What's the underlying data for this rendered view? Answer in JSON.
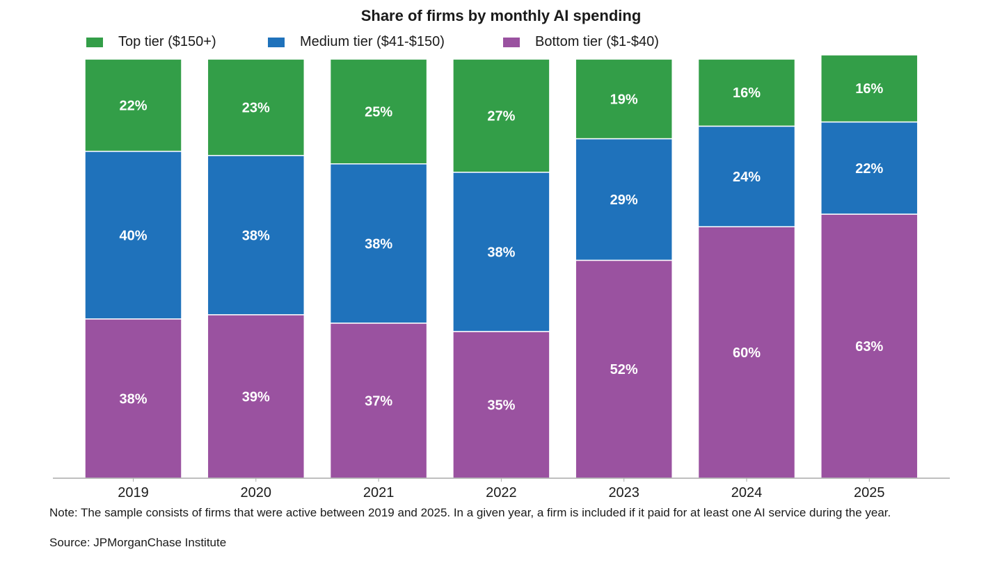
{
  "chart_data": {
    "type": "bar",
    "stacked": true,
    "title": "Share of firms by monthly AI spending",
    "xlabel": "",
    "ylabel": "",
    "ylim": [
      0,
      100
    ],
    "grid": false,
    "legend_position": "top-left",
    "categories": [
      "2019",
      "2020",
      "2021",
      "2022",
      "2023",
      "2024",
      "2025"
    ],
    "series": [
      {
        "name": "Bottom tier ($1-$40)",
        "color": "#9a52a0",
        "values": [
          38,
          39,
          37,
          35,
          52,
          60,
          63
        ]
      },
      {
        "name": "Medium tier ($41-$150)",
        "color": "#1f72bb",
        "values": [
          40,
          38,
          38,
          38,
          29,
          24,
          22
        ]
      },
      {
        "name": "Top tier ($150+)",
        "color": "#339e48",
        "values": [
          22,
          23,
          25,
          27,
          19,
          16,
          16
        ]
      }
    ],
    "legend": [
      {
        "label": "Top tier ($150+)",
        "color": "#339e48"
      },
      {
        "label": "Medium tier ($41-$150)",
        "color": "#1f72bb"
      },
      {
        "label": "Bottom tier ($1-$40)",
        "color": "#9a52a0"
      }
    ],
    "value_suffix": "%",
    "note": "Note: The sample consists of firms that were active between 2019 and 2025. In a given year, a firm is included if it paid for at least one AI service during the year.",
    "source": "Source: JPMorganChase Institute"
  }
}
